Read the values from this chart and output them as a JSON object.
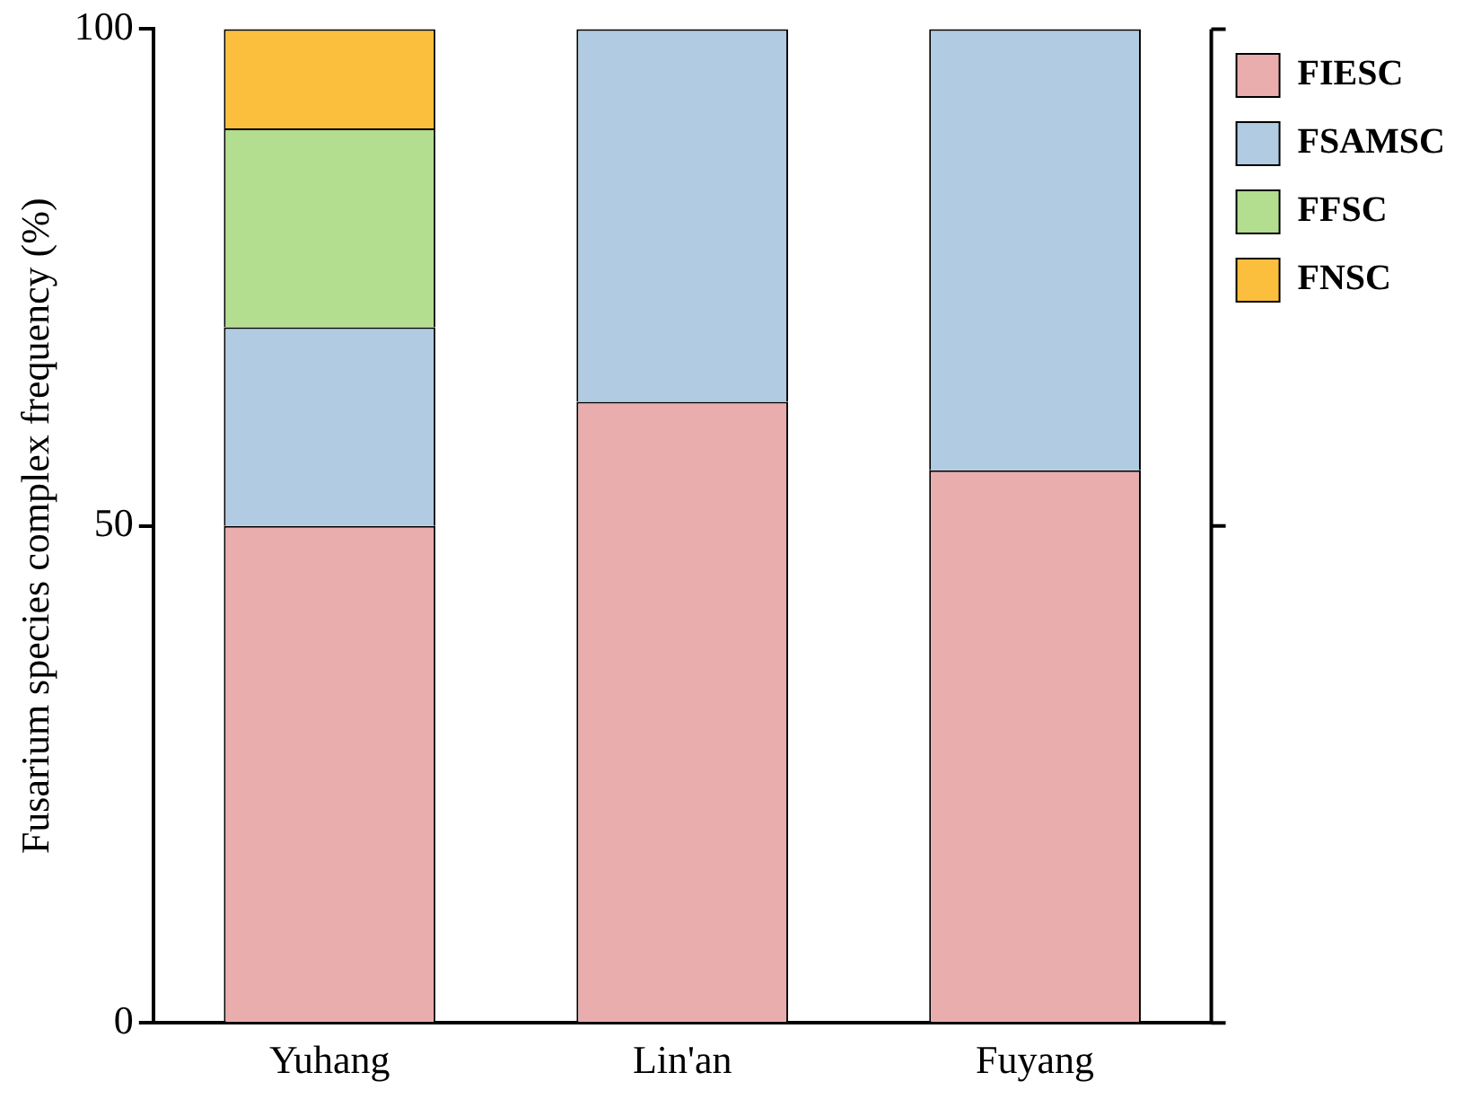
{
  "chart_data": {
    "type": "bar",
    "stacked": true,
    "ylabel": "Fusarium species complex frequency (%)",
    "categories": [
      "Yuhang",
      "Lin'an",
      "Fuyang"
    ],
    "series": [
      {
        "name": "FIESC",
        "color": "#e9adad",
        "values": [
          50,
          62.5,
          55.6
        ]
      },
      {
        "name": "FSAMSC",
        "color": "#b0cbe2",
        "values": [
          20,
          37.5,
          44.4
        ]
      },
      {
        "name": "FFSC",
        "color": "#b3dd8f",
        "values": [
          20,
          0,
          0
        ]
      },
      {
        "name": "FNSC",
        "color": "#fbbf3d",
        "values": [
          10,
          0,
          0
        ]
      }
    ],
    "ylim": [
      0,
      100
    ],
    "yticks": [
      0,
      50,
      100
    ],
    "grid": false,
    "legend": "top right"
  }
}
